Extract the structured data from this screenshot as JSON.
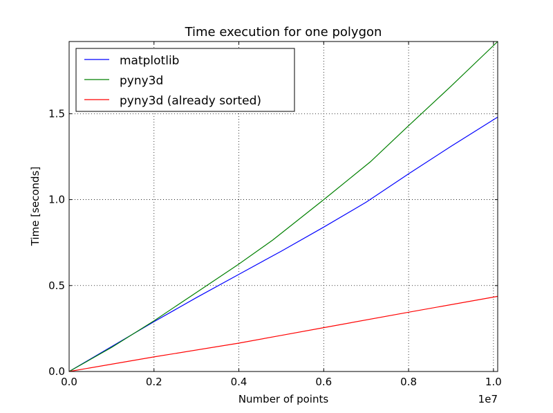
{
  "chart_data": {
    "type": "line",
    "title": "Time execution for one polygon",
    "xlabel": "Number of points",
    "ylabel": "Time [seconds]",
    "x_offset_label": "1e7",
    "xlim": [
      0,
      1.01
    ],
    "ylim": [
      0,
      1.92
    ],
    "grid": true,
    "legend_position": "top-left",
    "x_ticks": [
      0.0,
      0.2,
      0.4,
      0.6,
      0.8,
      1.0
    ],
    "x_tick_labels": [
      "0.0",
      "0.2",
      "0.4",
      "0.6",
      "0.8",
      "1.0"
    ],
    "y_ticks": [
      0.0,
      0.5,
      1.0,
      1.5
    ],
    "y_tick_labels": [
      "0.0",
      "0.5",
      "1.0",
      "1.5"
    ],
    "series": [
      {
        "name": "matplotlib",
        "color": "#0000ff",
        "x": [
          0.0,
          0.1,
          0.2,
          0.3,
          0.4,
          0.5,
          0.6,
          0.7,
          0.8,
          0.9,
          1.01
        ],
        "y": [
          0.0,
          0.145,
          0.29,
          0.43,
          0.565,
          0.7,
          0.84,
          0.985,
          1.15,
          1.31,
          1.48
        ]
      },
      {
        "name": "pyny3d",
        "color": "#008000",
        "x": [
          0.0,
          0.1,
          0.2,
          0.3,
          0.4,
          0.48,
          0.6,
          0.71,
          0.8,
          0.9,
          1.01
        ],
        "y": [
          0.0,
          0.14,
          0.295,
          0.46,
          0.625,
          0.765,
          1.0,
          1.22,
          1.43,
          1.66,
          1.92
        ]
      },
      {
        "name": "pyny3d (already sorted)",
        "color": "#ff0000",
        "x": [
          0.0,
          0.2,
          0.4,
          0.5,
          0.6,
          0.8,
          1.01
        ],
        "y": [
          0.0,
          0.085,
          0.165,
          0.21,
          0.255,
          0.345,
          0.437
        ]
      }
    ]
  }
}
